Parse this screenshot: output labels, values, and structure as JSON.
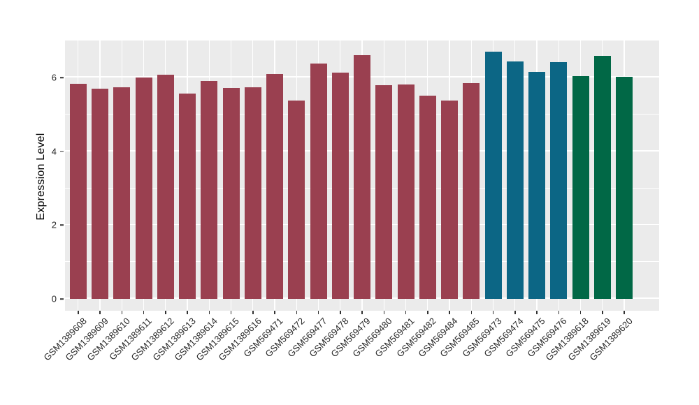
{
  "chart_data": {
    "type": "bar",
    "title": "",
    "xlabel": "",
    "ylabel": "Expression Level",
    "ylim": [
      0,
      7.05
    ],
    "yticks_major": [
      0,
      2,
      4,
      6
    ],
    "yticks_minor": [
      1,
      3,
      5,
      7
    ],
    "grid": true,
    "legend_position": "none",
    "panel_background": "#EBEBEB",
    "grid_color": "#FFFFFF",
    "axis_text_color": "#262626",
    "axis_title_color": "#000000",
    "palette": [
      "#9A4050",
      "#0C6685",
      "#016846"
    ],
    "categories": [
      "GSM1389608",
      "GSM1389609",
      "GSM1389610",
      "GSM1389611",
      "GSM1389612",
      "GSM1389613",
      "GSM1389614",
      "GSM1389615",
      "GSM1389616",
      "GSM569471",
      "GSM569472",
      "GSM569477",
      "GSM569478",
      "GSM569479",
      "GSM569480",
      "GSM569481",
      "GSM569482",
      "GSM569484",
      "GSM569485",
      "GSM569473",
      "GSM569474",
      "GSM569475",
      "GSM569476",
      "GSM1389618",
      "GSM1389619",
      "GSM1389620"
    ],
    "values": [
      5.83,
      5.69,
      5.73,
      6.01,
      6.07,
      5.57,
      5.91,
      5.71,
      5.74,
      6.1,
      5.38,
      6.38,
      6.14,
      6.6,
      5.79,
      5.82,
      5.5,
      5.37,
      5.85,
      6.7,
      6.43,
      6.16,
      6.42,
      6.04,
      6.59,
      6.02
    ],
    "color_index": [
      0,
      0,
      0,
      0,
      0,
      0,
      0,
      0,
      0,
      0,
      0,
      0,
      0,
      0,
      0,
      0,
      0,
      0,
      0,
      1,
      1,
      1,
      1,
      2,
      2,
      2
    ]
  }
}
